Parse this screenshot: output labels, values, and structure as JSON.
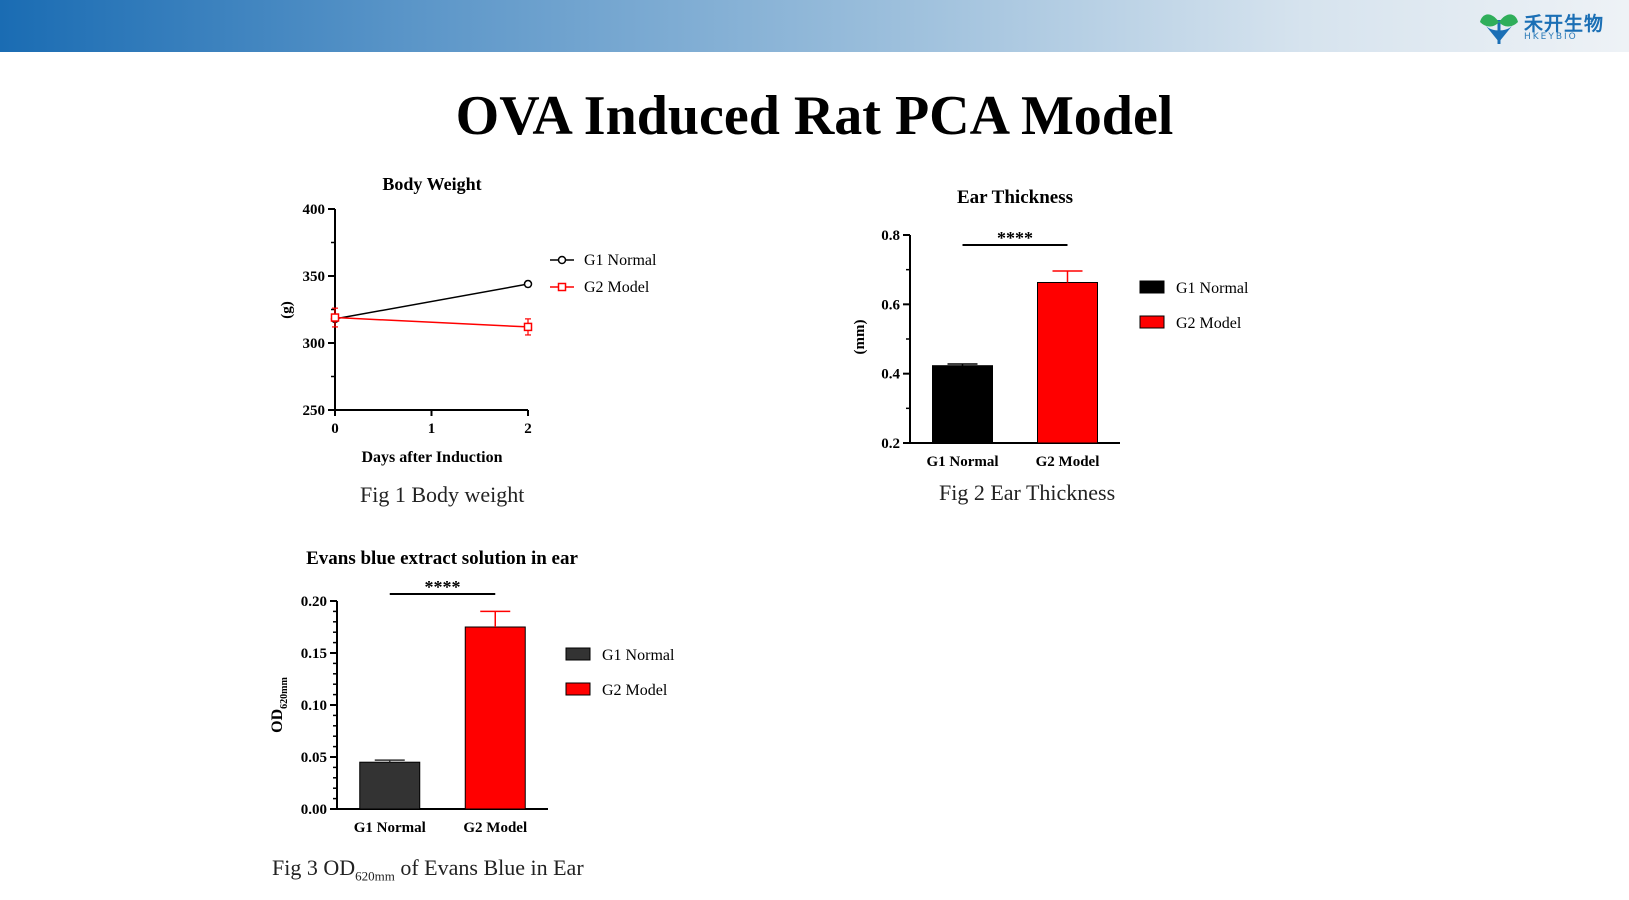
{
  "slide_title": "OVA Induced Rat PCA Model",
  "logo": {
    "cn": "禾开生物",
    "en": "HKEYBIO"
  },
  "colors": {
    "black": "#000000",
    "red": "#ff0000",
    "dark_gray": "#333333"
  },
  "captions": {
    "fig1": "Fig 1 Body  weight",
    "fig2": "Fig 2 Ear Thickness",
    "fig3_prefix": "Fig 3 OD",
    "fig3_sub": "620mm",
    "fig3_suffix": " of Evans Blue in Ear"
  },
  "chart_data": [
    {
      "type": "line",
      "title": "Body Weight",
      "xlabel": "Days after Induction",
      "ylabel": "(g)",
      "xlim": [
        0,
        2
      ],
      "ylim": [
        250,
        400
      ],
      "xticks": [
        "0",
        "1",
        "2"
      ],
      "yticks": [
        "250",
        "300",
        "350",
        "400"
      ],
      "series": [
        {
          "name": "G1 Normal",
          "color": "#000000",
          "marker": "circle",
          "x": [
            0,
            2
          ],
          "y": [
            318,
            344
          ],
          "err": [
            2,
            2
          ]
        },
        {
          "name": "G2 Model",
          "color": "#ff0000",
          "marker": "square",
          "x": [
            0,
            2
          ],
          "y": [
            319,
            312
          ],
          "err": [
            7,
            6
          ]
        }
      ],
      "legend": "right"
    },
    {
      "type": "bar",
      "title": "Ear Thickness",
      "ylabel": "(mm)",
      "categories": [
        "G1 Normal",
        "G2 Model"
      ],
      "values": [
        0.423,
        0.663
      ],
      "errors": [
        0.005,
        0.033
      ],
      "colors": [
        "#000000",
        "#ff0000"
      ],
      "ylim": [
        0.2,
        0.8
      ],
      "yticks": [
        "0.2",
        "0.4",
        "0.6",
        "0.8"
      ],
      "significance": "****",
      "legend": [
        "G1 Normal",
        "G2 Model"
      ]
    },
    {
      "type": "bar",
      "title": "Evans blue extract solution in ear",
      "ylabel_main": "OD",
      "ylabel_sub": "620mm",
      "categories": [
        "G1 Normal",
        "G2 Model"
      ],
      "values": [
        0.045,
        0.175
      ],
      "errors": [
        0.002,
        0.015
      ],
      "colors": [
        "#333333",
        "#ff0000"
      ],
      "ylim": [
        0,
        0.2
      ],
      "yticks": [
        "0.00",
        "0.05",
        "0.10",
        "0.15",
        "0.20"
      ],
      "significance": "****",
      "legend": [
        "G1 Normal",
        "G2 Model"
      ]
    }
  ]
}
